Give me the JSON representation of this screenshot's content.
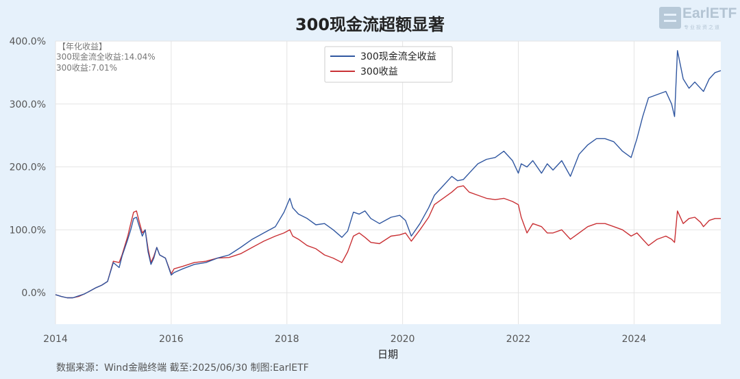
{
  "chart_data": {
    "type": "line",
    "title": "300现金流超额显著",
    "xlabel": "日期",
    "ylabel": "",
    "x_ticks": [
      "2014",
      "2016",
      "2018",
      "2020",
      "2022",
      "2024"
    ],
    "y_ticks": [
      "0.0%",
      "100.0%",
      "200.0%",
      "300.0%",
      "400.0%"
    ],
    "xlim": [
      2014.0,
      2025.5
    ],
    "ylim": [
      -50,
      400
    ],
    "grid": true,
    "legend": "top-center",
    "annotations": [
      "【年化收益】",
      "300现金流全收益:14.04%",
      "300收益:7.01%"
    ],
    "x": [
      2014.0,
      2014.1,
      2014.2,
      2014.3,
      2014.4,
      2014.5,
      2014.6,
      2014.7,
      2014.8,
      2014.9,
      2015.0,
      2015.1,
      2015.15,
      2015.25,
      2015.3,
      2015.35,
      2015.4,
      2015.45,
      2015.5,
      2015.55,
      2015.6,
      2015.65,
      2015.7,
      2015.75,
      2015.8,
      2015.9,
      2016.0,
      2016.05,
      2016.2,
      2016.4,
      2016.6,
      2016.8,
      2017.0,
      2017.2,
      2017.4,
      2017.6,
      2017.8,
      2017.95,
      2018.05,
      2018.1,
      2018.2,
      2018.35,
      2018.5,
      2018.65,
      2018.8,
      2018.95,
      2019.05,
      2019.15,
      2019.25,
      2019.35,
      2019.45,
      2019.6,
      2019.8,
      2019.95,
      2020.05,
      2020.15,
      2020.3,
      2020.45,
      2020.55,
      2020.7,
      2020.85,
      2020.95,
      2021.05,
      2021.15,
      2021.3,
      2021.45,
      2021.6,
      2021.75,
      2021.9,
      2022.0,
      2022.05,
      2022.15,
      2022.25,
      2022.4,
      2022.5,
      2022.6,
      2022.75,
      2022.9,
      2023.05,
      2023.2,
      2023.35,
      2023.5,
      2023.65,
      2023.8,
      2023.95,
      2024.05,
      2024.15,
      2024.25,
      2024.4,
      2024.55,
      2024.65,
      2024.7,
      2024.75,
      2024.85,
      2024.95,
      2025.05,
      2025.15,
      2025.2,
      2025.3,
      2025.4,
      2025.5
    ],
    "series": [
      {
        "name": "300现金流全收益",
        "color": "#2f56a0",
        "values": [
          -3,
          -6,
          -8,
          -8,
          -5,
          -2,
          3,
          8,
          12,
          18,
          48,
          40,
          58,
          85,
          100,
          118,
          120,
          105,
          90,
          100,
          65,
          45,
          55,
          72,
          60,
          55,
          28,
          32,
          38,
          45,
          48,
          55,
          60,
          72,
          85,
          95,
          105,
          128,
          150,
          135,
          125,
          118,
          108,
          110,
          100,
          88,
          98,
          128,
          125,
          130,
          118,
          110,
          120,
          123,
          115,
          90,
          110,
          135,
          155,
          170,
          185,
          178,
          180,
          190,
          205,
          212,
          215,
          225,
          210,
          190,
          205,
          200,
          210,
          190,
          205,
          195,
          210,
          185,
          220,
          235,
          245,
          245,
          240,
          225,
          215,
          245,
          280,
          310,
          315,
          320,
          300,
          280,
          385,
          340,
          325,
          335,
          325,
          320,
          340,
          350,
          353
        ]
      },
      {
        "name": "300收益",
        "color": "#c93034",
        "values": [
          -3,
          -6,
          -8,
          -8,
          -6,
          -2,
          3,
          8,
          12,
          18,
          50,
          48,
          60,
          90,
          110,
          128,
          130,
          112,
          95,
          100,
          70,
          48,
          58,
          72,
          60,
          55,
          30,
          38,
          42,
          48,
          50,
          55,
          56,
          62,
          72,
          82,
          90,
          95,
          100,
          90,
          85,
          75,
          70,
          60,
          55,
          48,
          65,
          90,
          95,
          88,
          80,
          78,
          90,
          92,
          95,
          82,
          100,
          120,
          140,
          150,
          160,
          168,
          170,
          160,
          155,
          150,
          148,
          150,
          145,
          140,
          120,
          95,
          110,
          105,
          95,
          95,
          100,
          85,
          95,
          105,
          110,
          110,
          105,
          100,
          90,
          95,
          85,
          75,
          85,
          90,
          85,
          80,
          130,
          110,
          118,
          120,
          112,
          105,
          115,
          118,
          118
        ]
      }
    ]
  },
  "source": "数据来源：Wind金融终端 截至:2025/06/30 制图:EarlETF",
  "logo": {
    "text": "EarlETF",
    "slogan": "专业投资之道"
  }
}
